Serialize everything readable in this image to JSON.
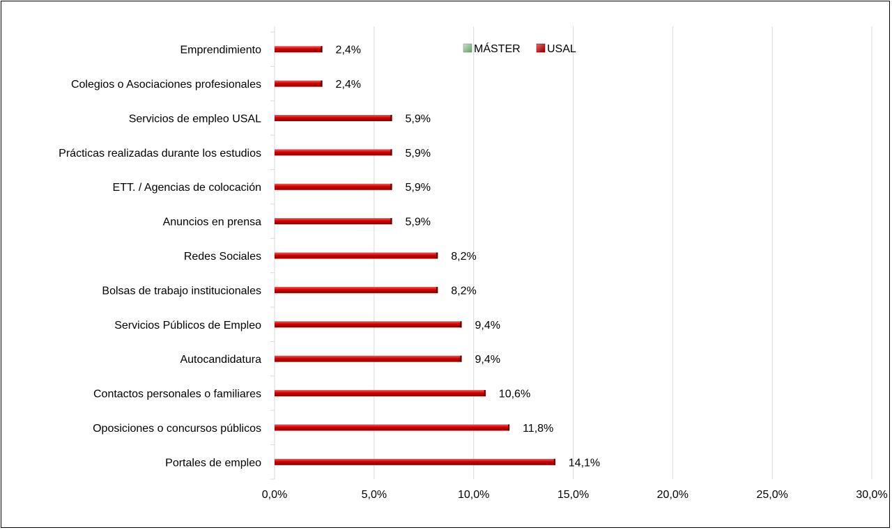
{
  "chart_data": {
    "type": "bar",
    "orientation": "horizontal",
    "categories": [
      "Emprendimiento",
      "Colegios o Asociaciones profesionales",
      "Servicios de empleo USAL",
      "Prácticas realizadas durante los estudios",
      "ETT. / Agencias de colocación",
      "Anuncios en prensa",
      "Redes Sociales",
      "Bolsas de trabajo institucionales",
      "Servicios Públicos de Empleo",
      "Autocandidatura",
      "Contactos personales o familiares",
      "Oposiciones o concursos públicos",
      "Portales de empleo"
    ],
    "series": [
      {
        "name": "MÁSTER",
        "color": "#8fbc8f",
        "values": [
          0,
          0,
          0,
          0,
          0,
          0,
          0,
          0,
          0,
          0,
          0,
          0,
          0
        ]
      },
      {
        "name": "USAL",
        "color": "#c00000",
        "values": [
          2.4,
          2.4,
          5.9,
          5.9,
          5.9,
          5.9,
          8.2,
          8.2,
          9.4,
          9.4,
          10.6,
          11.8,
          14.1
        ],
        "labels": [
          "2,4%",
          "2,4%",
          "5,9%",
          "5,9%",
          "5,9%",
          "5,9%",
          "8,2%",
          "8,2%",
          "9,4%",
          "9,4%",
          "10,6%",
          "11,8%",
          "14,1%"
        ]
      }
    ],
    "xticks": [
      0,
      5,
      10,
      15,
      20,
      25,
      30
    ],
    "xtick_labels": [
      "0,0%",
      "5,0%",
      "10,0%",
      "15,0%",
      "20,0%",
      "25,0%",
      "30,0%"
    ],
    "xlim": [
      0,
      30
    ],
    "grid": true,
    "legend_position": "top",
    "title": "",
    "xlabel": "",
    "ylabel": ""
  }
}
